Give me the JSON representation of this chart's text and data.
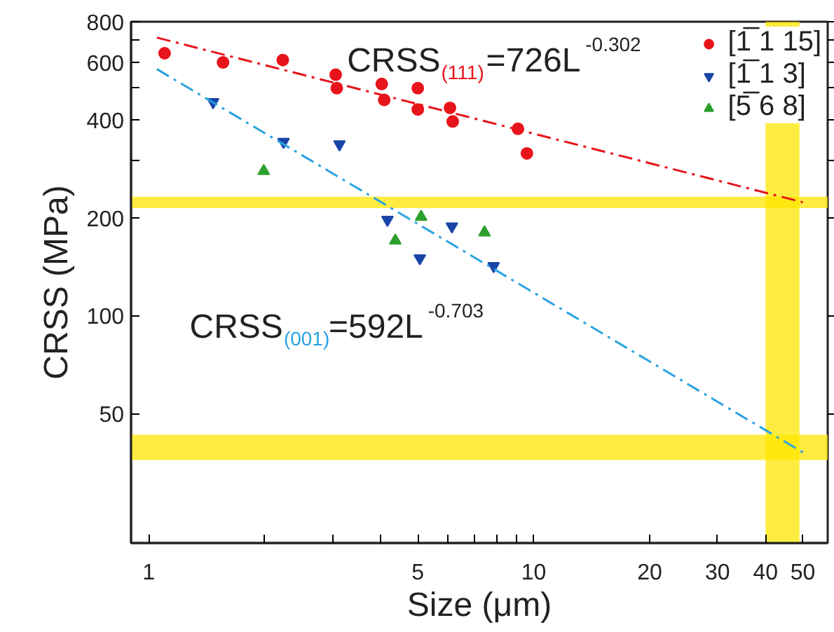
{
  "chart_data": {
    "type": "scatter",
    "xlabel": "Size (μm)",
    "ylabel": "CRSS (MPa)",
    "log": "xy",
    "xlim": [
      0.9,
      58
    ],
    "ylim": [
      20,
      800
    ],
    "xticks": [
      1,
      {
        "value": 2,
        "label": null
      },
      {
        "value": 3,
        "label": null
      },
      {
        "value": 4,
        "label": null
      },
      5,
      {
        "value": 6,
        "label": null
      },
      {
        "value": 7,
        "label": null
      },
      {
        "value": 8,
        "label": null
      },
      {
        "value": 9,
        "label": null
      },
      10,
      20,
      30,
      40,
      50
    ],
    "yticks": [
      50,
      100,
      200,
      {
        "value": 300,
        "label": null
      },
      400,
      {
        "value": 500,
        "label": null
      },
      600,
      {
        "value": 700,
        "label": null
      },
      800
    ],
    "grid": false,
    "legend": "top right",
    "series": [
      {
        "name": "[1̅ 1 15]",
        "color": "#e8141b",
        "marker": "circle",
        "x": [
          1.1,
          1.56,
          2.23,
          3.06,
          3.08,
          4.03,
          4.09,
          5.0,
          5.0,
          6.06,
          6.16,
          9.1,
          9.6
        ],
        "values": [
          640,
          600,
          610,
          550,
          500,
          515,
          460,
          500,
          430,
          435,
          395,
          375,
          315
        ]
      },
      {
        "name": "[1̅ 1 3]",
        "color": "#1a45a8",
        "marker": "triangle_down",
        "x": [
          1.47,
          2.24,
          3.13,
          4.17,
          5.06,
          6.13,
          7.87
        ],
        "values": [
          453,
          342,
          336,
          197,
          150,
          188,
          142
        ]
      },
      {
        "name": "[5̅ 6 8]",
        "color": "#2ca02c",
        "marker": "triangle",
        "x": [
          1.99,
          4.37,
          5.1,
          7.45
        ],
        "values": [
          278,
          170,
          201,
          180
        ]
      },
      {
        "type": "line",
        "color": "#e8141b",
        "line_style": "dashed",
        "x": [
          1.05,
          50
        ],
        "values": [
          715,
          223
        ]
      },
      {
        "type": "line",
        "color": "#2aa3e0",
        "line_style": "dashed",
        "x": [
          1.05,
          50
        ],
        "values": [
          572,
          38
        ]
      }
    ],
    "bands": [
      {
        "axis": "y",
        "from": 214,
        "to": 232,
        "color": "#ffe600"
      },
      {
        "axis": "y",
        "from": 36,
        "to": 43,
        "color": "#ffe600"
      },
      {
        "axis": "x",
        "from": 40,
        "to": 49,
        "color": "#ffe600"
      }
    ],
    "annotations": [
      "CRSS$_{(111)}$=726L$^{-0.302}$",
      "CRSS$_{(001)}$=592L$^{-0.703}$"
    ]
  }
}
